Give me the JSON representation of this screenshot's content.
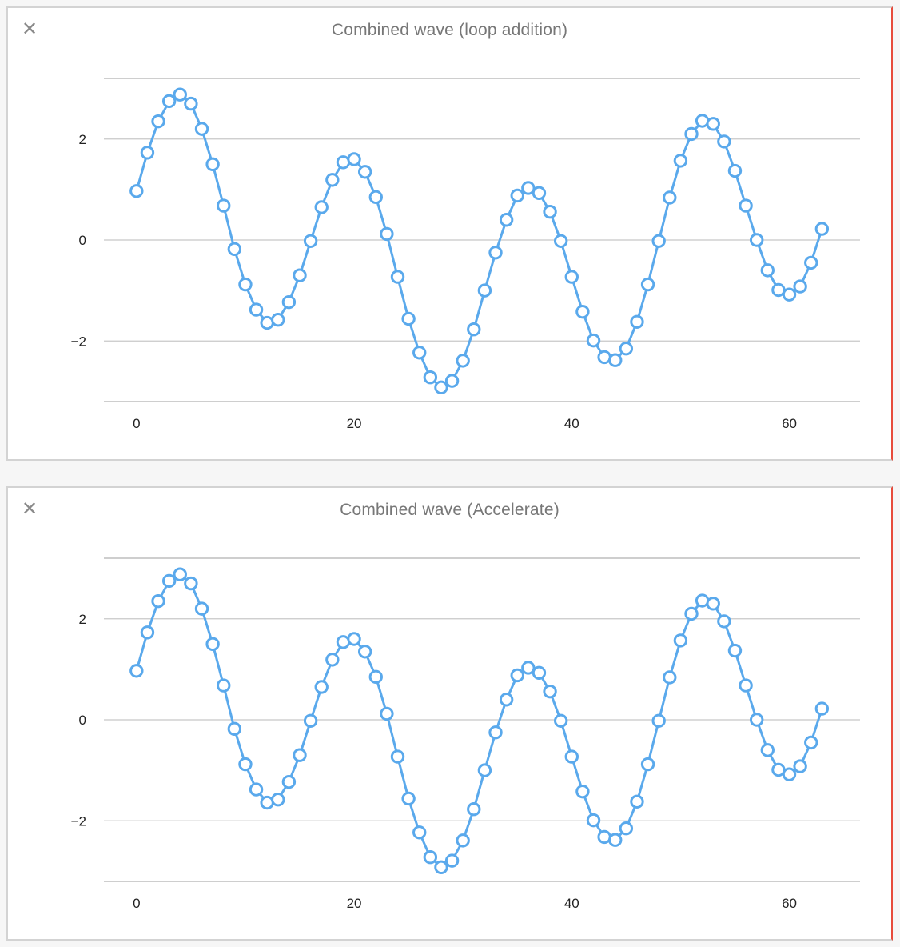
{
  "panels": [
    {
      "title": "Combined wave (loop addition)",
      "close_icon": "close-icon"
    },
    {
      "title": "Combined wave (Accelerate)",
      "close_icon": "close-icon"
    }
  ],
  "colors": {
    "series": "#5aa9ec",
    "grid": "#c8c8c8",
    "accent_border": "#e74c3c"
  },
  "chart_data": [
    {
      "type": "line",
      "title": "Combined wave (loop addition)",
      "xlabel": "",
      "ylabel": "",
      "xlim": [
        -3,
        66.5
      ],
      "ylim": [
        -3.2,
        3.2
      ],
      "x_ticks": [
        0,
        20,
        40,
        60
      ],
      "y_ticks": [
        2,
        0,
        -2
      ],
      "x_tick_labels": [
        "0",
        "20",
        "40",
        "60"
      ],
      "y_tick_labels": [
        "2",
        "0",
        "−2"
      ],
      "grid": true,
      "markers": "open-circle",
      "series": [
        {
          "x": [
            0,
            1,
            2,
            3,
            4,
            5,
            6,
            7,
            8,
            9,
            10,
            11,
            12,
            13,
            14,
            15,
            16,
            17,
            18,
            19,
            20,
            21,
            22,
            23,
            24,
            25,
            26,
            27,
            28,
            29,
            30,
            31,
            32,
            33,
            34,
            35,
            36,
            37,
            38,
            39,
            40,
            41,
            42,
            43,
            44,
            45,
            46,
            47,
            48,
            49,
            50,
            51,
            52,
            53,
            54,
            55,
            56,
            57,
            58,
            59,
            60,
            61,
            62,
            63
          ],
          "values": [
            0.97,
            1.73,
            2.35,
            2.75,
            2.88,
            2.7,
            2.2,
            1.5,
            0.68,
            -0.18,
            -0.88,
            -1.38,
            -1.64,
            -1.58,
            -1.23,
            -0.7,
            -0.02,
            0.65,
            1.19,
            1.54,
            1.6,
            1.35,
            0.85,
            0.12,
            -0.73,
            -1.56,
            -2.23,
            -2.72,
            -2.92,
            -2.79,
            -2.39,
            -1.77,
            -1.0,
            -0.25,
            0.4,
            0.88,
            1.03,
            0.93,
            0.56,
            -0.02,
            -0.73,
            -1.42,
            -1.99,
            -2.32,
            -2.38,
            -2.15,
            -1.62,
            -0.88,
            -0.02,
            0.84,
            1.57,
            2.1,
            2.36,
            2.3,
            1.95,
            1.37,
            0.68,
            0.0,
            -0.6,
            -0.99,
            -1.08,
            -0.92,
            -0.45,
            0.22
          ]
        }
      ]
    },
    {
      "type": "line",
      "title": "Combined wave (Accelerate)",
      "xlabel": "",
      "ylabel": "",
      "xlim": [
        -3,
        66.5
      ],
      "ylim": [
        -3.2,
        3.2
      ],
      "x_ticks": [
        0,
        20,
        40,
        60
      ],
      "y_ticks": [
        2,
        0,
        -2
      ],
      "x_tick_labels": [
        "0",
        "20",
        "40",
        "60"
      ],
      "y_tick_labels": [
        "2",
        "0",
        "−2"
      ],
      "grid": true,
      "markers": "open-circle",
      "series": [
        {
          "x": [
            0,
            1,
            2,
            3,
            4,
            5,
            6,
            7,
            8,
            9,
            10,
            11,
            12,
            13,
            14,
            15,
            16,
            17,
            18,
            19,
            20,
            21,
            22,
            23,
            24,
            25,
            26,
            27,
            28,
            29,
            30,
            31,
            32,
            33,
            34,
            35,
            36,
            37,
            38,
            39,
            40,
            41,
            42,
            43,
            44,
            45,
            46,
            47,
            48,
            49,
            50,
            51,
            52,
            53,
            54,
            55,
            56,
            57,
            58,
            59,
            60,
            61,
            62,
            63
          ],
          "values": [
            0.97,
            1.73,
            2.35,
            2.75,
            2.88,
            2.7,
            2.2,
            1.5,
            0.68,
            -0.18,
            -0.88,
            -1.38,
            -1.64,
            -1.58,
            -1.23,
            -0.7,
            -0.02,
            0.65,
            1.19,
            1.54,
            1.6,
            1.35,
            0.85,
            0.12,
            -0.73,
            -1.56,
            -2.23,
            -2.72,
            -2.92,
            -2.79,
            -2.39,
            -1.77,
            -1.0,
            -0.25,
            0.4,
            0.88,
            1.03,
            0.93,
            0.56,
            -0.02,
            -0.73,
            -1.42,
            -1.99,
            -2.32,
            -2.38,
            -2.15,
            -1.62,
            -0.88,
            -0.02,
            0.84,
            1.57,
            2.1,
            2.36,
            2.3,
            1.95,
            1.37,
            0.68,
            0.0,
            -0.6,
            -0.99,
            -1.08,
            -0.92,
            -0.45,
            0.22
          ]
        }
      ]
    }
  ]
}
